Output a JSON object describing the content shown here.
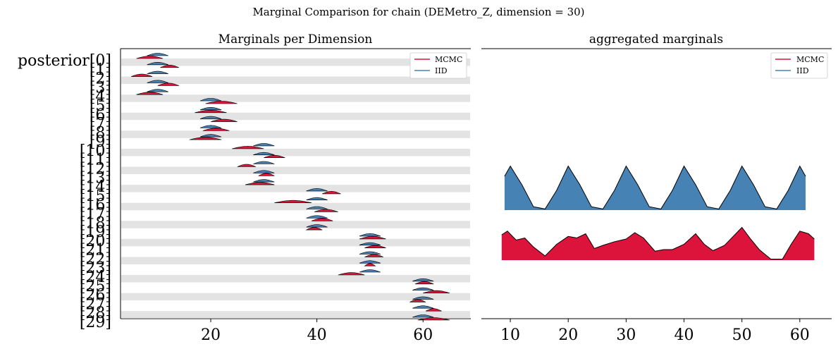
{
  "figure": {
    "suptitle": "Marginal Comparison for chain (DEMetro_Z, dimension = 30)"
  },
  "legend": {
    "mcmc": "MCMC",
    "iid": "IID"
  },
  "colors": {
    "mcmc": "#dc143c",
    "iid": "#4682b4",
    "band": "#e3e3e3",
    "edge": "#000000"
  },
  "chart_data": [
    {
      "type": "area",
      "title": "Marginals per Dimension",
      "legend_position": "top-right",
      "xlim": [
        3,
        69
      ],
      "xticks": [
        20,
        40,
        60
      ],
      "xtick_labels": [
        "20",
        "40",
        "60"
      ],
      "ylabels": [
        "posterior[0]",
        "[1]",
        "[2]",
        "[3]",
        "[4]",
        "[5]",
        "[6]",
        "[7]",
        "[8]",
        "[9]",
        "[10]",
        "[11]",
        "[12]",
        "[13]",
        "[14]",
        "[15]",
        "[16]",
        "[17]",
        "[18]",
        "[19]",
        "[20]",
        "[21]",
        "[22]",
        "[23]",
        "[24]",
        "[25]",
        "[26]",
        "[27]",
        "[28]",
        "[29]"
      ],
      "iid_center": [
        10,
        10,
        10,
        10,
        10,
        20,
        20,
        20,
        20,
        20,
        30,
        30,
        30,
        30,
        30,
        40,
        40,
        40,
        40,
        40,
        50,
        50,
        50,
        50,
        50,
        60,
        60,
        60,
        60,
        60
      ],
      "mcmc_range": [
        [
          6,
          11
        ],
        [
          10.5,
          14
        ],
        [
          5,
          9
        ],
        [
          10,
          14
        ],
        [
          6,
          11
        ],
        [
          19,
          25
        ],
        [
          17,
          23
        ],
        [
          20,
          25
        ],
        [
          18.5,
          23.5
        ],
        [
          16,
          22
        ],
        [
          24,
          30
        ],
        [
          30,
          34
        ],
        [
          25,
          28.5
        ],
        [
          29,
          32
        ],
        [
          26.5,
          32
        ],
        [
          41,
          44.5
        ],
        [
          32,
          39
        ],
        [
          39.5,
          44
        ],
        [
          39,
          43
        ],
        [
          38,
          41
        ],
        [
          48,
          53
        ],
        [
          49,
          53
        ],
        [
          49,
          52.5
        ],
        [
          49,
          51
        ],
        [
          44,
          49
        ],
        [
          58.5,
          62
        ],
        [
          60,
          65
        ],
        [
          57.5,
          60.5
        ],
        [
          60.5,
          63.5
        ],
        [
          59,
          65
        ]
      ],
      "series": [
        {
          "name": "MCMC",
          "color": "#dc143c"
        },
        {
          "name": "IID",
          "color": "#4682b4"
        }
      ]
    },
    {
      "type": "area",
      "title": "aggregated marginals",
      "legend_position": "top-right",
      "xlim": [
        5,
        65.5
      ],
      "xticks": [
        10,
        20,
        30,
        40,
        50,
        60
      ],
      "xtick_labels": [
        "10",
        "20",
        "30",
        "40",
        "50",
        "60"
      ],
      "series": [
        {
          "name": "IID",
          "x": [
            9,
            10,
            12,
            14,
            16,
            18,
            20,
            22,
            24,
            26,
            28,
            30,
            32,
            34,
            36,
            38,
            40,
            42,
            44,
            46,
            48,
            50,
            52,
            54,
            56,
            58,
            60,
            61
          ],
          "y": [
            0.6,
            0.78,
            0.45,
            0.06,
            0.02,
            0.35,
            0.78,
            0.45,
            0.06,
            0.02,
            0.35,
            0.78,
            0.45,
            0.06,
            0.02,
            0.35,
            0.78,
            0.45,
            0.06,
            0.02,
            0.35,
            0.78,
            0.45,
            0.06,
            0.02,
            0.35,
            0.78,
            0.6
          ]
        },
        {
          "name": "MCMC",
          "x": [
            8.5,
            9.5,
            11,
            12.5,
            14,
            16,
            18,
            20,
            21.5,
            23,
            24.5,
            26,
            28,
            30,
            31.5,
            33,
            35,
            36.5,
            38,
            40,
            42,
            43.5,
            45,
            47,
            48.5,
            50,
            51.5,
            53,
            55,
            57,
            58.5,
            60,
            61.5,
            62.5
          ],
          "y": [
            0.48,
            0.55,
            0.38,
            0.42,
            0.25,
            0.08,
            0.3,
            0.45,
            0.42,
            0.5,
            0.22,
            0.28,
            0.35,
            0.4,
            0.52,
            0.42,
            0.17,
            0.2,
            0.2,
            0.3,
            0.5,
            0.3,
            0.18,
            0.28,
            0.45,
            0.62,
            0.4,
            0.2,
            0.02,
            0.02,
            0.3,
            0.55,
            0.5,
            0.4
          ]
        }
      ]
    }
  ]
}
